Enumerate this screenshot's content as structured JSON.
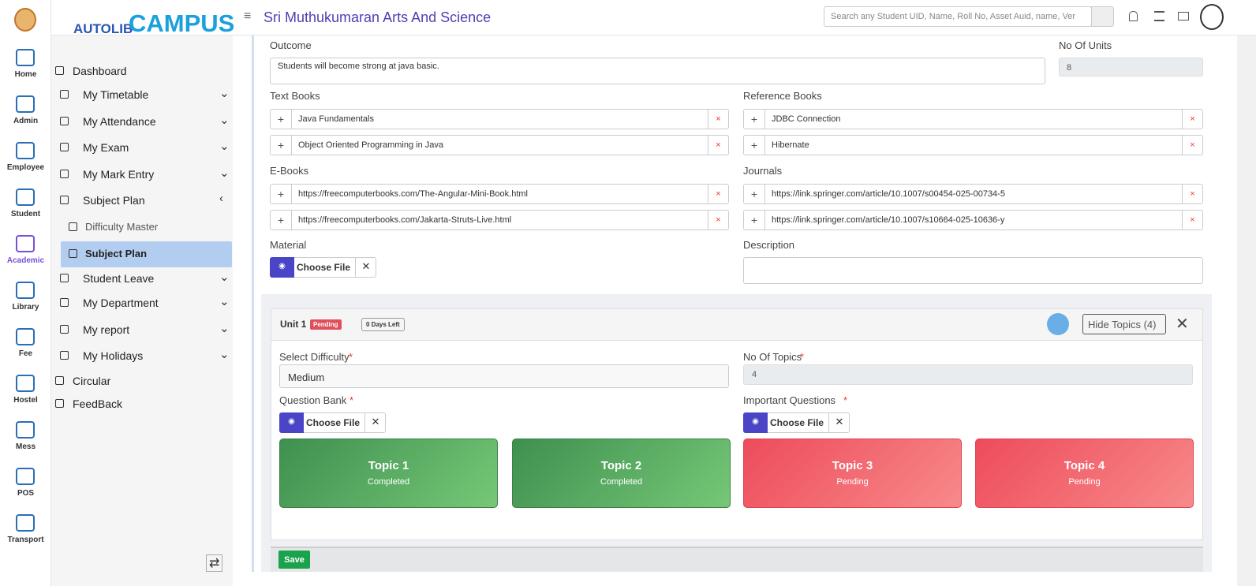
{
  "header": {
    "brand_small": "AUTOLIB",
    "brand_big": "CAMPUS",
    "institution": "Sri Muthukumaran Arts And Science",
    "search_placeholder": "Search any Student UID, Name, Roll No, Asset Auid, name, Ver"
  },
  "rail": [
    "Home",
    "Admin",
    "Employee",
    "Student",
    "Academic",
    "Library",
    "Fee",
    "Hostel",
    "Mess",
    "POS",
    "Transport"
  ],
  "sidebar": [
    "Dashboard",
    "My Timetable",
    "My Attendance",
    "My Exam",
    "My Mark Entry",
    "Subject Plan",
    "Difficulty Master",
    "Subject Plan",
    "Student Leave",
    "My Department",
    "My report",
    "My Holidays",
    "Circular",
    "FeedBack"
  ],
  "form": {
    "outcome_label": "Outcome",
    "outcome_text": "Students will become strong at java basic.",
    "units_label": "No Of Units",
    "units_value": "8",
    "text_books_label": "Text Books",
    "text_books": [
      "Java Fundamentals",
      "Object Oriented Programming in Java"
    ],
    "reference_books_label": "Reference Books",
    "reference_books": [
      "JDBC Connection",
      "Hibernate"
    ],
    "ebooks_label": "E-Books",
    "ebooks": [
      "https://freecomputerbooks.com/The-Angular-Mini-Book.html",
      "https://freecomputerbooks.com/Jakarta-Struts-Live.html"
    ],
    "journals_label": "Journals",
    "journals": [
      "https://link.springer.com/article/10.1007/s00454-025-00734-5",
      "https://link.springer.com/article/10.1007/s10664-025-10636-y"
    ],
    "material_label": "Material",
    "choose_file": "Choose File",
    "description_label": "Description"
  },
  "unit": {
    "title": "Unit 1",
    "status": "Pending",
    "days_left": "0 Days Left",
    "hide_topics": "Hide Topics (4)",
    "difficulty_label": "Select Difficulty",
    "difficulty_value": "Medium",
    "required": "*",
    "topics_count_label": "No Of Topics",
    "topics_count": "4",
    "question_bank_label": "Question Bank",
    "important_questions_label": "Important Questions",
    "topics": [
      {
        "name": "Topic 1",
        "status": "Completed"
      },
      {
        "name": "Topic 2",
        "status": "Completed"
      },
      {
        "name": "Topic 3",
        "status": "Pending"
      },
      {
        "name": "Topic 4",
        "status": "Pending"
      }
    ],
    "save": "Save"
  }
}
